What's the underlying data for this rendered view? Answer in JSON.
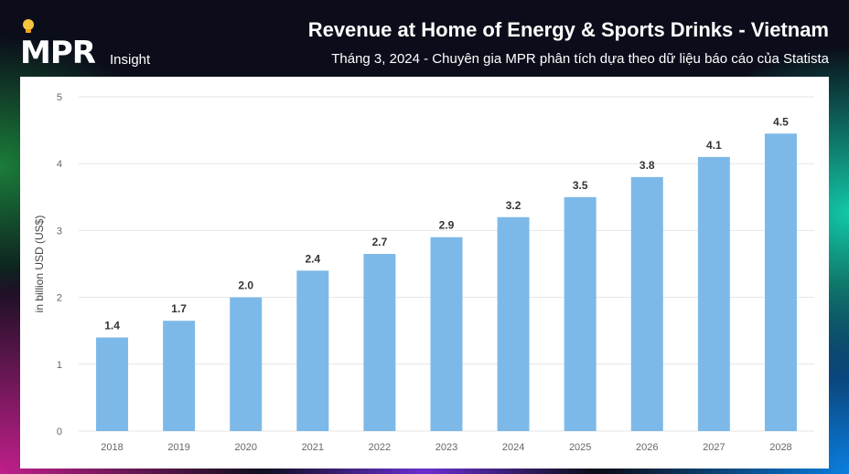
{
  "brand": {
    "logo_text": "MPR",
    "tagline": "Insight"
  },
  "header": {
    "title": "Revenue at Home of Energy & Sports Drinks - Vietnam",
    "subtitle": "Tháng 3, 2024 - Chuyên gia MPR phân tích dựa theo dữ liệu báo cáo của Statista"
  },
  "colors": {
    "bar": "#7db9e8",
    "panel": "#ffffff"
  },
  "chart_data": {
    "type": "bar",
    "title": "Revenue at Home of Energy & Sports Drinks - Vietnam",
    "xlabel": "",
    "ylabel": "in billion USD (US$)",
    "ylim": [
      0,
      5
    ],
    "yticks": [
      0,
      1,
      2,
      3,
      4,
      5
    ],
    "grid": true,
    "categories": [
      "2018",
      "2019",
      "2020",
      "2021",
      "2022",
      "2023",
      "2024",
      "2025",
      "2026",
      "2027",
      "2028"
    ],
    "values": [
      1.4,
      1.65,
      2.0,
      2.4,
      2.65,
      2.9,
      3.2,
      3.5,
      3.8,
      4.1,
      4.45
    ],
    "data_labels": [
      "1.4",
      "1.7",
      "2.0",
      "2.4",
      "2.7",
      "2.9",
      "3.2",
      "3.5",
      "3.8",
      "4.1",
      "4.5"
    ]
  }
}
